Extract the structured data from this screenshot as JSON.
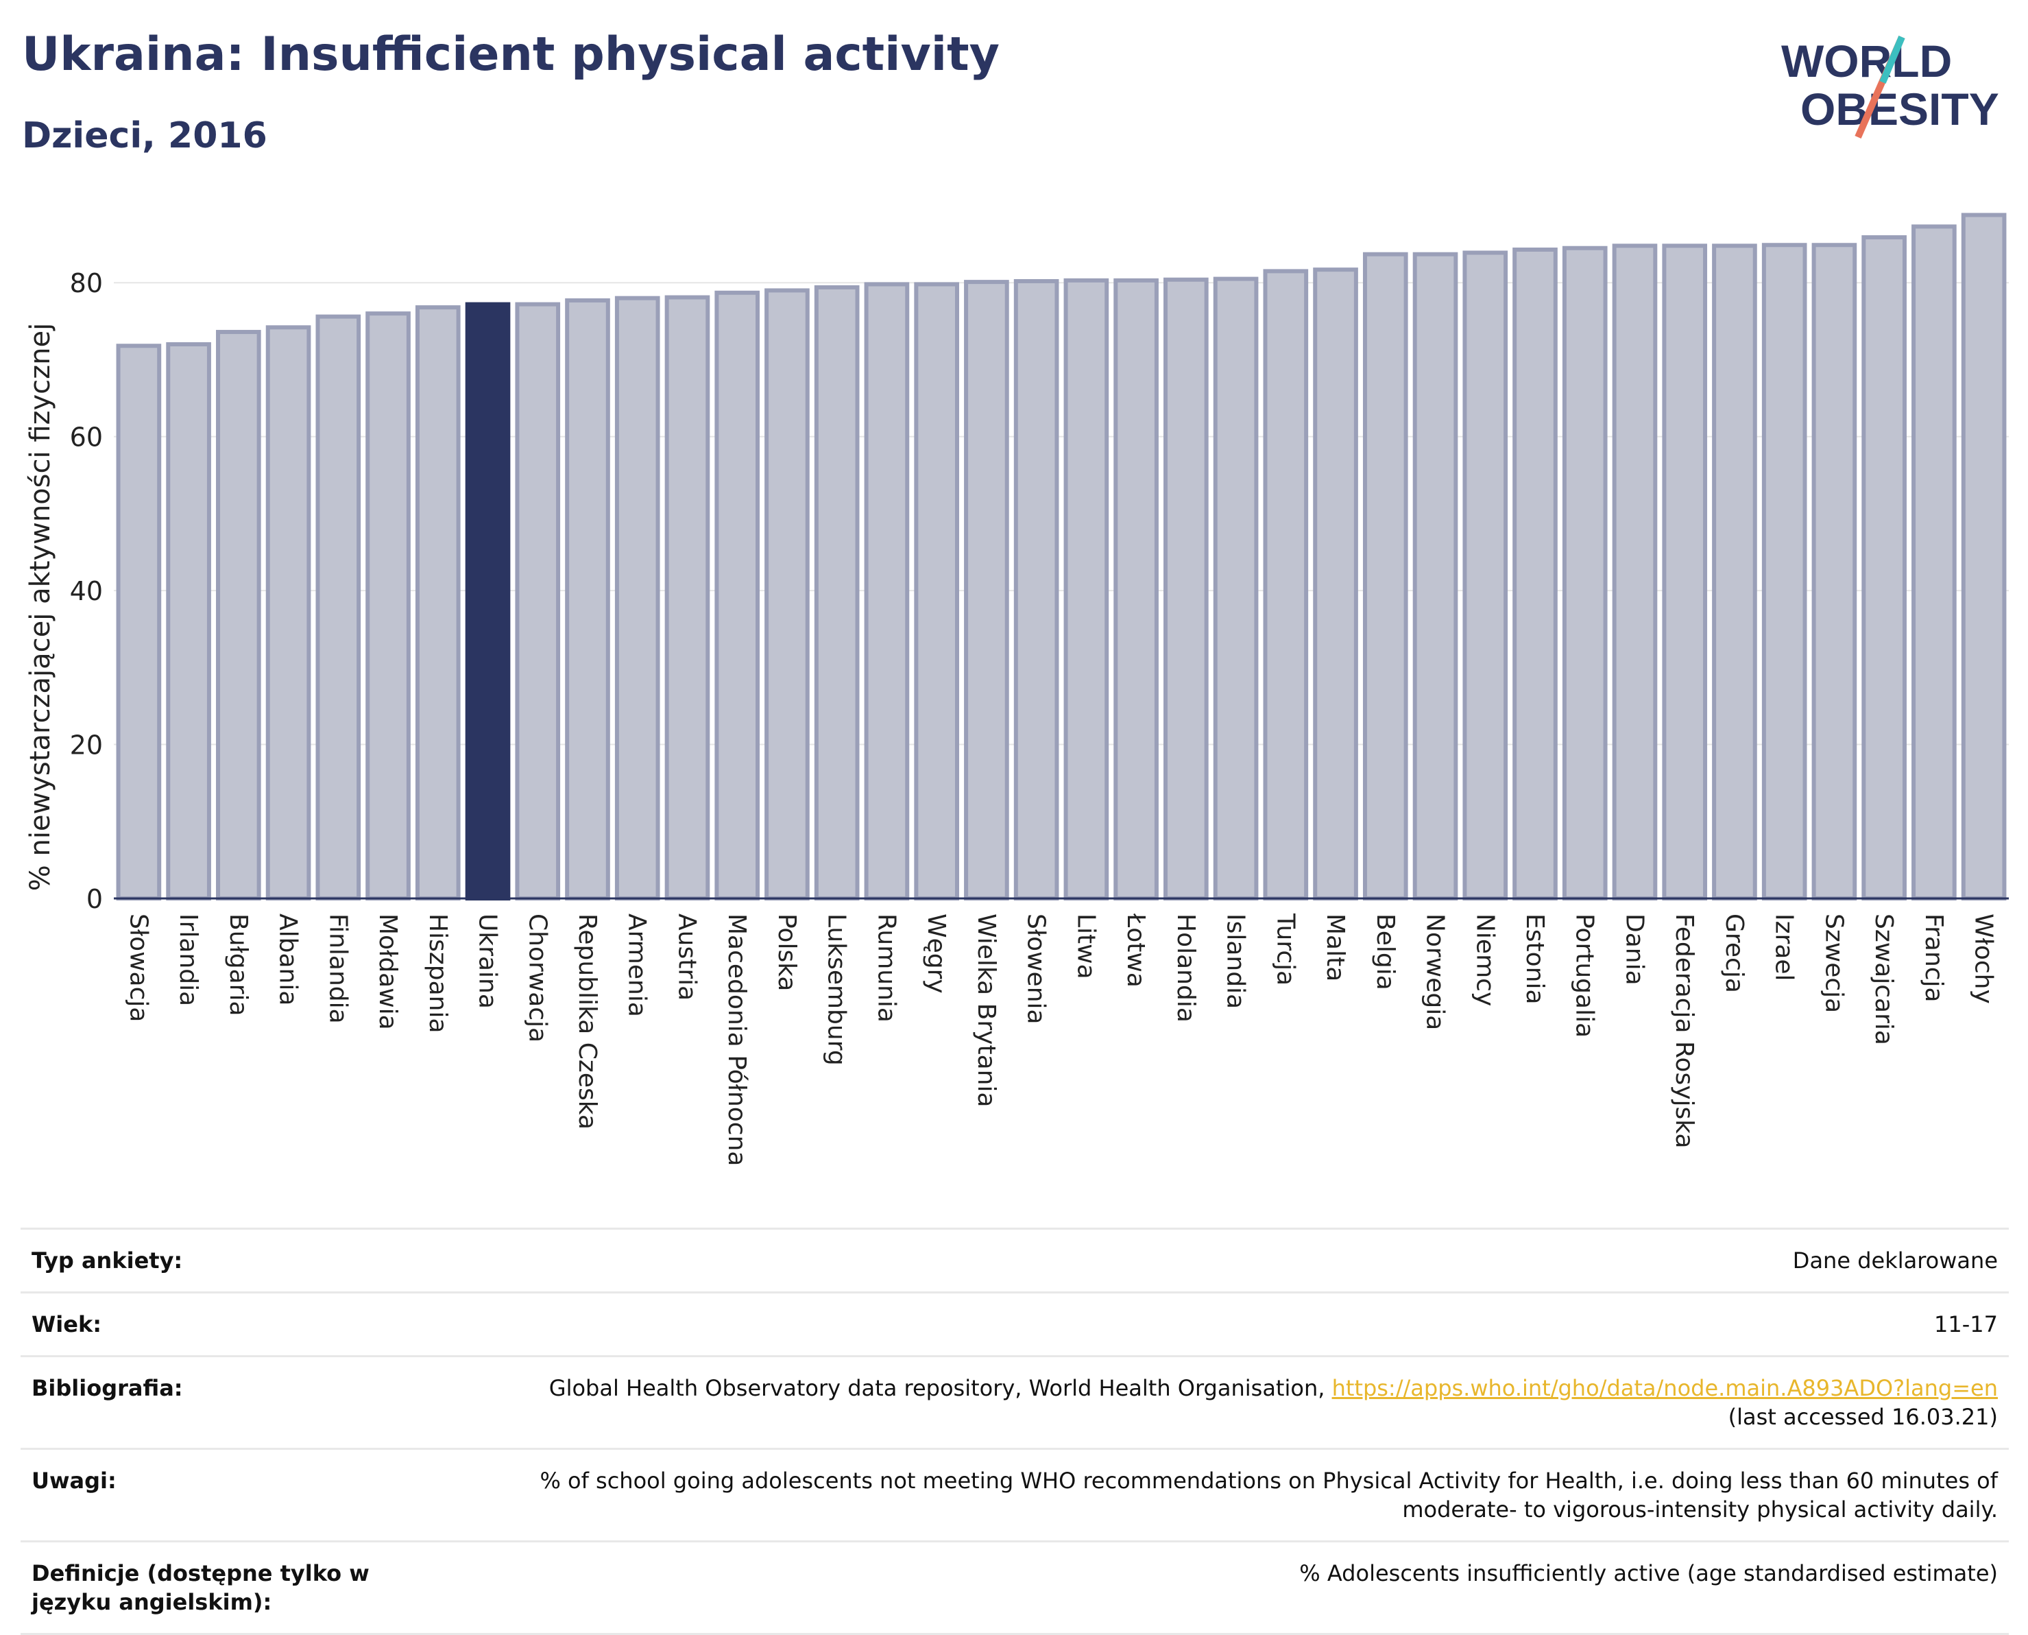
{
  "header": {
    "title": "Ukraina: Insufficient physical activity",
    "subtitle": "Dzieci, 2016"
  },
  "logo": {
    "line1": "WORLD",
    "line2": "OBESITY"
  },
  "colors": {
    "highlight": "#2b3561",
    "bar": "#c0c3d0",
    "bar_border": "#9a9fb8",
    "text": "#2b3561"
  },
  "chart_data": {
    "type": "bar",
    "ylabel": "% niewystarczającej aktywności fizycznej",
    "ylim": [
      0,
      90
    ],
    "yticks": [
      0,
      20,
      40,
      60,
      80
    ],
    "grid": true,
    "highlight": "Ukraina",
    "categories": [
      "Słowacja",
      "Irlandia",
      "Bułgaria",
      "Albania",
      "Finlandia",
      "Mołdawia",
      "Hiszpania",
      "Ukraina",
      "Chorwacja",
      "Republika Czeska",
      "Armenia",
      "Austria",
      "Macedonia Północna",
      "Polska",
      "Luksemburg",
      "Rumunia",
      "Węgry",
      "Wielka Brytania",
      "Słowenia",
      "Litwa",
      "Łotwa",
      "Holandia",
      "Islandia",
      "Turcja",
      "Malta",
      "Belgia",
      "Norwegia",
      "Niemcy",
      "Estonia",
      "Portugalia",
      "Dania",
      "Federacja Rosyjska",
      "Grecja",
      "Izrael",
      "Szwecja",
      "Szwajcaria",
      "Francja",
      "Włochy"
    ],
    "values": [
      71.8,
      72.0,
      73.6,
      74.2,
      75.6,
      76.0,
      76.8,
      77.2,
      77.2,
      77.7,
      78.0,
      78.1,
      78.7,
      79.0,
      79.4,
      79.8,
      79.8,
      80.1,
      80.2,
      80.3,
      80.3,
      80.4,
      80.5,
      81.5,
      81.7,
      83.7,
      83.7,
      83.9,
      84.3,
      84.5,
      84.8,
      84.8,
      84.8,
      84.9,
      84.9,
      85.9,
      87.3,
      88.8
    ]
  },
  "meta": [
    {
      "label": "Typ ankiety:",
      "value": "Dane deklarowane"
    },
    {
      "label": "Wiek:",
      "value": "11-17"
    },
    {
      "label": "Bibliografia:",
      "value": "Global Health Observatory data repository, World Health Organisation, ",
      "link": "https://apps.who.int/gho/data/node.main.A893ADO?lang=en",
      "value2": "(last accessed 16.03.21)"
    },
    {
      "label": "Uwagi:",
      "value": "% of school going adolescents not meeting WHO recommendations on Physical Activity for Health, i.e. doing less than 60 minutes of moderate- to vigorous-intensity physical activity daily."
    },
    {
      "label": "Definicje (dostępne tylko w języku angielskim):",
      "value": "% Adolescents insufficiently active (age standardised estimate)"
    }
  ]
}
